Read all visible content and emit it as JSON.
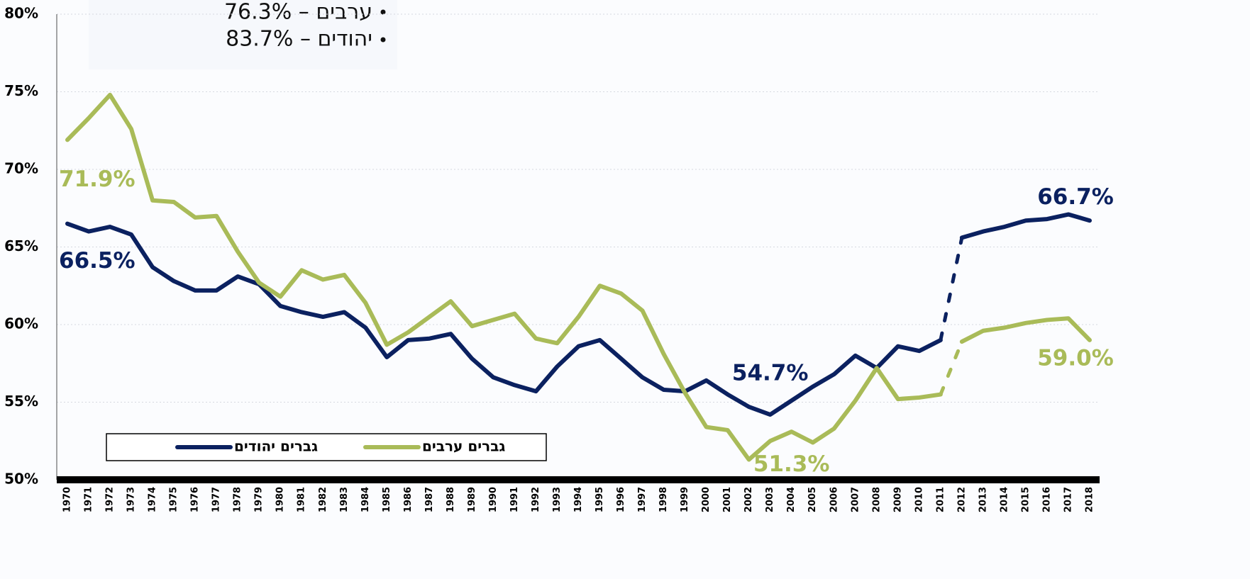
{
  "chart_data": {
    "type": "line",
    "annotations": [
      "ערבים – 76.3%",
      "יהודים – 83.7%"
    ],
    "categories": [
      "1970",
      "1971",
      "1972",
      "1973",
      "1974",
      "1975",
      "1976",
      "1977",
      "1978",
      "1979",
      "1980",
      "1981",
      "1982",
      "1983",
      "1984",
      "1985",
      "1986",
      "1987",
      "1988",
      "1989",
      "1990",
      "1991",
      "1992",
      "1993",
      "1994",
      "1995",
      "1996",
      "1997",
      "1998",
      "1999",
      "2000",
      "2001",
      "2002",
      "2003",
      "2004",
      "2005",
      "2006",
      "2007",
      "2008",
      "2009",
      "2010",
      "2011",
      "2012",
      "2013",
      "2014",
      "2015",
      "2016",
      "2017",
      "2018"
    ],
    "series": [
      {
        "name": "גברים יהודים",
        "color": "#0b2160",
        "values": [
          66.5,
          66.0,
          66.3,
          65.8,
          63.7,
          62.8,
          62.2,
          62.2,
          63.1,
          62.6,
          61.2,
          60.8,
          60.5,
          60.8,
          59.8,
          57.9,
          59.0,
          59.1,
          59.4,
          57.8,
          56.6,
          56.1,
          55.7,
          57.3,
          58.6,
          59.0,
          57.8,
          56.6,
          55.8,
          55.7,
          56.4,
          55.5,
          54.7,
          54.2,
          55.1,
          56.0,
          56.8,
          58.0,
          57.2,
          58.6,
          58.3,
          59.0,
          65.6,
          66.0,
          66.3,
          66.7,
          66.8,
          67.1,
          66.7
        ],
        "value_labels": [
          "66.5%",
          null,
          null,
          null,
          null,
          null,
          null,
          null,
          null,
          null,
          null,
          null,
          null,
          null,
          null,
          null,
          null,
          null,
          null,
          null,
          null,
          null,
          null,
          null,
          null,
          null,
          null,
          null,
          null,
          null,
          null,
          null,
          "54.7%",
          null,
          null,
          null,
          null,
          null,
          null,
          null,
          null,
          null,
          null,
          null,
          null,
          null,
          null,
          null,
          "66.7%"
        ]
      },
      {
        "name": "גברים ערבים",
        "color": "#a9bb58",
        "values": [
          71.9,
          73.3,
          74.8,
          72.6,
          68.0,
          67.9,
          66.9,
          67.0,
          64.7,
          62.7,
          61.8,
          63.5,
          62.9,
          63.2,
          61.4,
          58.7,
          59.5,
          60.5,
          61.5,
          59.9,
          60.3,
          60.7,
          59.1,
          58.8,
          60.5,
          62.5,
          62.0,
          60.9,
          58.1,
          55.6,
          53.4,
          53.2,
          51.3,
          52.5,
          53.1,
          52.4,
          53.3,
          55.1,
          57.2,
          55.2,
          55.3,
          55.5,
          58.9,
          59.6,
          59.8,
          60.1,
          60.3,
          60.4,
          59.0
        ],
        "value_labels": [
          "71.9%",
          null,
          null,
          null,
          null,
          null,
          null,
          null,
          null,
          null,
          null,
          null,
          null,
          null,
          null,
          null,
          null,
          null,
          null,
          null,
          null,
          null,
          null,
          null,
          null,
          null,
          null,
          null,
          null,
          null,
          null,
          null,
          "51.3%",
          null,
          null,
          null,
          null,
          null,
          null,
          null,
          null,
          null,
          null,
          null,
          null,
          null,
          null,
          null,
          "59.0%"
        ]
      }
    ],
    "dashed_segment": [
      "2011",
      "2012"
    ],
    "ylim": [
      50,
      80
    ],
    "yticks": [
      {
        "value": 50,
        "label": "50%"
      },
      {
        "value": 55,
        "label": "55%"
      },
      {
        "value": 60,
        "label": "60%"
      },
      {
        "value": 65,
        "label": "65%"
      },
      {
        "value": 70,
        "label": "70%"
      },
      {
        "value": 75,
        "label": "75%"
      },
      {
        "value": 80,
        "label": "80%"
      }
    ],
    "grid": true
  }
}
